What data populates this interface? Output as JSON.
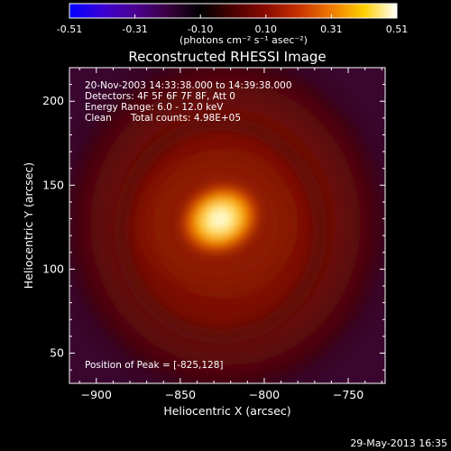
{
  "colorbar": {
    "ticks": [
      "-0.51",
      "-0.31",
      "-0.10",
      "0.10",
      "0.31",
      "0.51"
    ],
    "units_label": "(photons cm⁻² s⁻¹ asec⁻²)",
    "colors": [
      "#0000ff",
      "#3b00d6",
      "#4b0090",
      "#3a0040",
      "#000000",
      "#4a0000",
      "#8a0a00",
      "#c83200",
      "#f07a00",
      "#ffd000",
      "#ffffff"
    ]
  },
  "image_title": "Reconstructed RHESSI Image",
  "annotations": {
    "time_range": "20-Nov-2003 14:33:38.000 to 14:39:38.000",
    "detectors": "Detectors: 4F 5F 6F 7F 8F, Att 0",
    "energy": "Energy Range: 6.0 - 12.0 keV",
    "algorithm": "Clean",
    "counts": "Total counts: 4.98E+05",
    "peak": "Position of Peak = [-825,128]"
  },
  "footer_timestamp": "29-May-2013 16:35",
  "chart_data": {
    "type": "heatmap",
    "title": "Reconstructed RHESSI Image",
    "xlabel": "Heliocentric X (arcsec)",
    "ylabel": "Heliocentric Y (arcsec)",
    "xlim": [
      -916,
      -728
    ],
    "ylim": [
      32,
      220
    ],
    "x_ticks": [
      -900,
      -850,
      -800,
      -750
    ],
    "y_ticks": [
      50,
      100,
      150,
      200
    ],
    "colorbar_range": [
      -0.51,
      0.51
    ],
    "peak": {
      "x": -825,
      "y": 128
    },
    "grid": false
  }
}
